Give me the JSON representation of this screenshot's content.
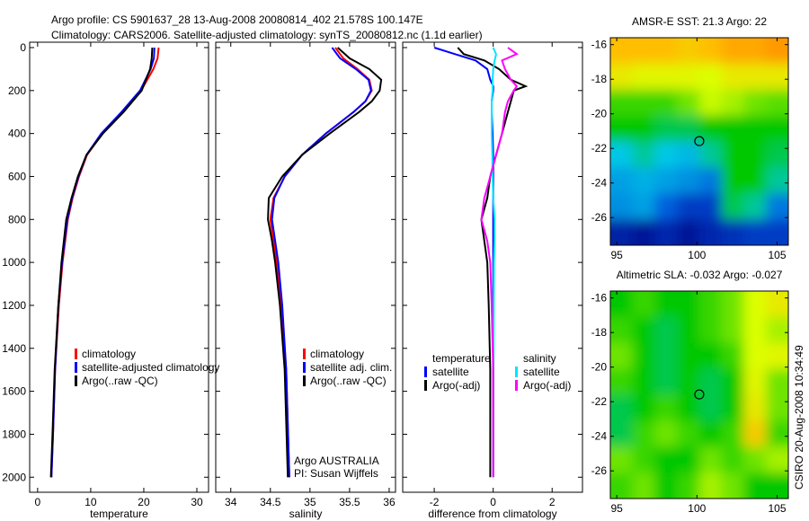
{
  "header": {
    "title_line1": "Argo profile: CS 5901637_28 13-Aug-2008 20080814_402 21.578S 100.147E",
    "title_line2": "Climatology: CARS2006. Satellite-adjusted climatology: synTS_20080812.nc (1.1d earlier)"
  },
  "footer_stamp": "CSIRO 20-Aug-2008 10:34:49",
  "colors": {
    "climatology": "#ff0000",
    "satellite": "#0000ff",
    "argo": "#000000",
    "sal_satellite": "#00e5ff",
    "sal_argo": "#ff00ff"
  },
  "chart_data": [
    {
      "type": "line",
      "xlabel": "temperature",
      "xlim": [
        -1.5,
        32.2
      ],
      "ylim": [
        2070,
        -25
      ],
      "xticks": [
        "0",
        "10",
        "20",
        "30"
      ],
      "xtick_values": [
        0,
        10,
        20,
        30
      ],
      "yticks": [
        "0",
        "200",
        "400",
        "600",
        "800",
        "1000",
        "1200",
        "1400",
        "1600",
        "1800",
        "2000"
      ],
      "ytick_values": [
        0,
        200,
        400,
        600,
        800,
        1000,
        1200,
        1400,
        1600,
        1800,
        2000
      ],
      "depth": [
        0,
        50,
        100,
        200,
        300,
        400,
        500,
        600,
        700,
        800,
        1000,
        1200,
        1500,
        1800,
        2000
      ],
      "series": [
        {
          "name": "climatology",
          "color": "#ff0000",
          "values": [
            22.8,
            22.6,
            21.8,
            19.5,
            16,
            12.2,
            9.3,
            7.8,
            6.6,
            5.7,
            4.7,
            4,
            3.3,
            2.9,
            2.6
          ]
        },
        {
          "name": "satellite-adjusted climatology",
          "color": "#0000ff",
          "values": [
            22,
            21.9,
            21.3,
            19.3,
            15.8,
            12,
            9.2,
            7.7,
            6.5,
            5.6,
            4.6,
            3.9,
            3.3,
            2.9,
            2.6
          ]
        },
        {
          "name": "Argo(..raw -QC)",
          "color": "#000000",
          "values": [
            21.6,
            21.5,
            21.2,
            19.6,
            16.2,
            12.3,
            9.2,
            7.6,
            6.4,
            5.4,
            4.5,
            3.9,
            3.2,
            2.8,
            2.5
          ]
        }
      ],
      "legend": [
        "climatology",
        "satellite-adjusted climatology",
        "Argo(..raw -QC)"
      ]
    },
    {
      "type": "line",
      "xlabel": "salinity",
      "xlim": [
        33.81,
        36.08
      ],
      "ylim": [
        2070,
        -25
      ],
      "xticks": [
        "34",
        "34.5",
        "35",
        "35.5",
        "36"
      ],
      "xtick_values": [
        34,
        34.5,
        35,
        35.5,
        36
      ],
      "depth": [
        0,
        50,
        100,
        150,
        200,
        250,
        300,
        400,
        500,
        600,
        700,
        800,
        900,
        1000,
        1200,
        1500,
        2000
      ],
      "series": [
        {
          "name": "climatology",
          "color": "#ff0000",
          "values": [
            35.32,
            35.42,
            35.6,
            35.75,
            35.78,
            35.7,
            35.55,
            35.2,
            34.9,
            34.68,
            34.54,
            34.5,
            34.54,
            34.58,
            34.64,
            34.7,
            34.74
          ]
        },
        {
          "name": "satellite adj. clim.",
          "color": "#0000ff",
          "values": [
            35.28,
            35.38,
            35.58,
            35.74,
            35.77,
            35.7,
            35.55,
            35.2,
            34.9,
            34.68,
            34.55,
            34.52,
            34.56,
            34.6,
            34.65,
            34.7,
            34.74
          ]
        },
        {
          "name": "Argo(..raw -QC)",
          "color": "#000000",
          "values": [
            35.35,
            35.5,
            35.75,
            35.9,
            35.88,
            35.78,
            35.62,
            35.25,
            34.9,
            34.65,
            34.48,
            34.47,
            34.52,
            34.56,
            34.62,
            34.68,
            34.72
          ]
        }
      ],
      "legend": [
        "climatology",
        "satellite adj. clim.",
        "Argo(..raw -QC)"
      ],
      "annotation": [
        "Argo AUSTRALIA",
        "PI: Susan Wijffels"
      ]
    },
    {
      "type": "line",
      "xlabel": "difference from climatology",
      "xlim": [
        -3.07,
        3.03
      ],
      "ylim": [
        2070,
        -25
      ],
      "xticks": [
        "-2",
        "0",
        "2"
      ],
      "xtick_values": [
        -2,
        0,
        2
      ],
      "depth": [
        0,
        30,
        60,
        100,
        150,
        180,
        200,
        250,
        300,
        400,
        500,
        600,
        700,
        800,
        900,
        1000,
        1200,
        1500,
        2000
      ],
      "series": [
        {
          "name": "temperature satellite",
          "color": "#0000ff",
          "values": [
            -2,
            -1.3,
            -0.6,
            -0.2,
            -0.1,
            0,
            0,
            -0.05,
            -0.05,
            -0.02,
            0,
            0,
            0,
            0,
            0,
            0,
            0,
            0,
            0
          ]
        },
        {
          "name": "temperature Argo(-adj)",
          "color": "#000000",
          "values": [
            -1.2,
            -1,
            -0.3,
            0.2,
            0.6,
            1.1,
            0.7,
            0.6,
            0.5,
            0.3,
            0.1,
            -0.1,
            -0.2,
            -0.4,
            -0.3,
            -0.2,
            -0.15,
            -0.1,
            -0.1
          ]
        },
        {
          "name": "salinity satellite",
          "color": "#00e5ff",
          "values": [
            0,
            0.1,
            0.05,
            0,
            -0.02,
            -0.02,
            -0.02,
            -0.05,
            -0.05,
            -0.05,
            -0.03,
            -0.02,
            0,
            0.05,
            0.05,
            0.03,
            0.02,
            0.01,
            0
          ]
        },
        {
          "name": "salinity Argo(-adj)",
          "color": "#ff00ff",
          "values": [
            0.5,
            0.8,
            0.3,
            0.4,
            0.6,
            0.8,
            0.7,
            0.5,
            0.4,
            0.3,
            0.1,
            -0.1,
            -0.3,
            -0.4,
            -0.2,
            -0.1,
            -0.05,
            0,
            0
          ]
        }
      ],
      "legend_temperature_title": "temperature",
      "legend_salinity_title": "salinity",
      "legend_labels": [
        "satellite",
        "Argo(-adj)",
        "satellite",
        "Argo(-adj)"
      ]
    },
    {
      "type": "heatmap",
      "title": "AMSR-E SST: 21.3 Argo: 22",
      "xlim": [
        94.6,
        105.7
      ],
      "ylim": [
        -15.6,
        -27.6
      ],
      "xticks": [
        "95",
        "100",
        "105"
      ],
      "xtick_values": [
        95,
        100,
        105
      ],
      "yticks": [
        "-16",
        "-18",
        "-20",
        "-22",
        "-24",
        "-26"
      ],
      "ytick_values": [
        -16,
        -18,
        -20,
        -22,
        -24,
        -26
      ],
      "marker": {
        "lon": 100.147,
        "lat": -21.578
      },
      "grid": [
        [
          0.85,
          0.85,
          0.85,
          0.82,
          0.85,
          0.88,
          0.88,
          0.9
        ],
        [
          0.75,
          0.72,
          0.72,
          0.72,
          0.7,
          0.75,
          0.75,
          0.75
        ],
        [
          0.55,
          0.55,
          0.55,
          0.6,
          0.68,
          0.65,
          0.6,
          0.58
        ],
        [
          0.5,
          0.5,
          0.45,
          0.45,
          0.5,
          0.5,
          0.5,
          0.5
        ],
        [
          0.35,
          0.4,
          0.35,
          0.33,
          0.4,
          0.5,
          0.5,
          0.45
        ],
        [
          0.3,
          0.32,
          0.3,
          0.28,
          0.25,
          0.5,
          0.5,
          0.4
        ],
        [
          0.28,
          0.3,
          0.22,
          0.15,
          0.15,
          0.45,
          0.4,
          0.25
        ],
        [
          0.08,
          0.05,
          0.1,
          0.05,
          0.1,
          0.12,
          0.15,
          0.15
        ]
      ]
    },
    {
      "type": "heatmap",
      "title": "Altimetric SLA: -0.032 Argo: -0.027",
      "xlim": [
        94.6,
        105.7
      ],
      "ylim": [
        -15.6,
        -27.6
      ],
      "xticks": [
        "95",
        "100",
        "105"
      ],
      "xtick_values": [
        95,
        100,
        105
      ],
      "yticks": [
        "-16",
        "-18",
        "-20",
        "-22",
        "-24",
        "-26"
      ],
      "ytick_values": [
        -16,
        -18,
        -20,
        -22,
        -24,
        -26
      ],
      "marker": {
        "lon": 100.147,
        "lat": -21.578
      },
      "grid": [
        [
          0.5,
          0.55,
          0.5,
          0.5,
          0.55,
          0.6,
          0.7,
          0.75
        ],
        [
          0.55,
          0.5,
          0.45,
          0.5,
          0.55,
          0.6,
          0.7,
          0.65
        ],
        [
          0.6,
          0.5,
          0.45,
          0.5,
          0.5,
          0.55,
          0.7,
          0.72
        ],
        [
          0.55,
          0.5,
          0.45,
          0.5,
          0.45,
          0.5,
          0.72,
          0.6
        ],
        [
          0.45,
          0.5,
          0.55,
          0.5,
          0.45,
          0.5,
          0.75,
          0.6
        ],
        [
          0.45,
          0.55,
          0.6,
          0.55,
          0.5,
          0.55,
          0.82,
          0.55
        ],
        [
          0.6,
          0.55,
          0.5,
          0.5,
          0.6,
          0.55,
          0.6,
          0.65
        ],
        [
          0.55,
          0.6,
          0.5,
          0.55,
          0.65,
          0.6,
          0.5,
          0.5
        ]
      ]
    }
  ]
}
